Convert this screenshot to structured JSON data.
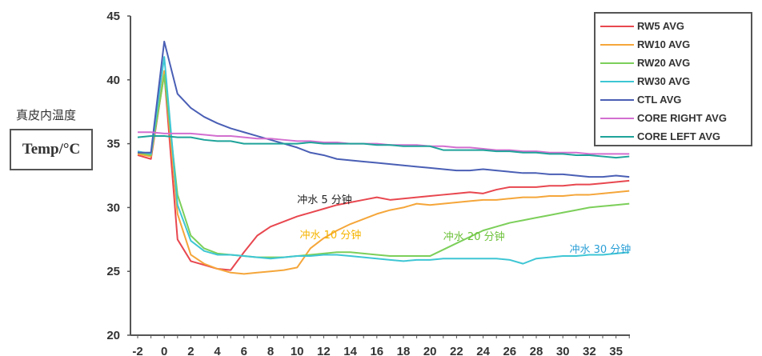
{
  "chart_data": {
    "type": "line",
    "title": "",
    "xlabel": "",
    "ylabel": "Temp/°C",
    "ylabel_cn": "真皮内温度",
    "ylim": [
      20,
      45
    ],
    "xlim": [
      -2,
      35
    ],
    "yticks": [
      20,
      25,
      30,
      35,
      40,
      45
    ],
    "xtick_labels": [
      "-2",
      "0",
      "2",
      "4",
      "6",
      "8",
      "10",
      "12",
      "14",
      "16",
      "18",
      "20",
      "22",
      "24",
      "26",
      "28",
      "30",
      "32",
      "35"
    ],
    "grid": false,
    "legend_position": "upper right",
    "x": [
      -2,
      -1,
      0,
      1,
      2,
      3,
      4,
      5,
      6,
      7,
      8,
      9,
      10,
      11,
      12,
      13,
      14,
      15,
      16,
      17,
      18,
      19,
      20,
      21,
      22,
      23,
      24,
      25,
      26,
      27,
      28,
      29,
      30,
      31,
      32,
      33,
      34,
      35
    ],
    "series": [
      {
        "name": "RW5 AVG",
        "color": "#e8474f",
        "values": [
          34.1,
          33.8,
          40.5,
          27.5,
          25.8,
          25.5,
          25.2,
          25.1,
          26.5,
          27.8,
          28.5,
          28.9,
          29.3,
          29.6,
          29.9,
          30.2,
          30.4,
          30.6,
          30.8,
          30.6,
          30.7,
          30.8,
          30.9,
          31.0,
          31.1,
          31.2,
          31.1,
          31.4,
          31.6,
          31.6,
          31.6,
          31.7,
          31.7,
          31.8,
          31.8,
          31.9,
          32.0,
          32.1
        ]
      },
      {
        "name": "RW10 AVG",
        "color": "#f5a63a",
        "values": [
          34.2,
          34.0,
          40.7,
          29.5,
          26.3,
          25.6,
          25.2,
          24.9,
          24.8,
          24.9,
          25.0,
          25.1,
          25.3,
          26.8,
          27.6,
          28.2,
          28.7,
          29.1,
          29.5,
          29.8,
          30.0,
          30.3,
          30.2,
          30.3,
          30.4,
          30.5,
          30.6,
          30.6,
          30.7,
          30.8,
          30.8,
          30.9,
          30.9,
          31.0,
          31.0,
          31.1,
          31.2,
          31.3
        ]
      },
      {
        "name": "RW20 AVG",
        "color": "#7ccf5a",
        "values": [
          34.3,
          34.1,
          40.4,
          31.0,
          27.8,
          26.8,
          26.4,
          26.3,
          26.2,
          26.1,
          26.1,
          26.1,
          26.2,
          26.3,
          26.4,
          26.5,
          26.5,
          26.4,
          26.3,
          26.2,
          26.2,
          26.2,
          26.2,
          26.7,
          27.2,
          27.7,
          28.2,
          28.5,
          28.8,
          29.0,
          29.2,
          29.4,
          29.6,
          29.8,
          30.0,
          30.1,
          30.2,
          30.3
        ]
      },
      {
        "name": "RW30 AVG",
        "color": "#3ec6d4",
        "values": [
          34.4,
          34.2,
          41.8,
          30.2,
          27.4,
          26.6,
          26.3,
          26.3,
          26.2,
          26.1,
          26.0,
          26.1,
          26.2,
          26.2,
          26.3,
          26.3,
          26.2,
          26.1,
          26.0,
          25.9,
          25.8,
          25.9,
          25.9,
          26.0,
          26.0,
          26.0,
          26.0,
          26.0,
          25.9,
          25.6,
          26.0,
          26.1,
          26.2,
          26.2,
          26.3,
          26.3,
          26.4,
          26.5
        ]
      },
      {
        "name": "CTL AVG",
        "color": "#4a5fb5",
        "values": [
          34.3,
          34.3,
          43.0,
          38.9,
          37.8,
          37.1,
          36.6,
          36.2,
          35.9,
          35.6,
          35.3,
          35.0,
          34.7,
          34.3,
          34.1,
          33.8,
          33.7,
          33.6,
          33.5,
          33.4,
          33.3,
          33.2,
          33.1,
          33.0,
          32.9,
          32.9,
          33.0,
          32.9,
          32.8,
          32.7,
          32.7,
          32.6,
          32.6,
          32.5,
          32.4,
          32.4,
          32.5,
          32.4
        ]
      },
      {
        "name": "CORE RIGHT AVG",
        "color": "#d36fd0",
        "values": [
          35.9,
          35.9,
          35.8,
          35.8,
          35.8,
          35.7,
          35.6,
          35.6,
          35.5,
          35.4,
          35.4,
          35.3,
          35.2,
          35.2,
          35.1,
          35.1,
          35.0,
          35.0,
          35.0,
          34.9,
          34.9,
          34.9,
          34.8,
          34.8,
          34.7,
          34.7,
          34.6,
          34.5,
          34.5,
          34.4,
          34.4,
          34.3,
          34.3,
          34.3,
          34.2,
          34.2,
          34.2,
          34.2
        ]
      },
      {
        "name": "CORE LEFT AVG",
        "color": "#1fa39a",
        "values": [
          35.5,
          35.6,
          35.6,
          35.5,
          35.5,
          35.3,
          35.2,
          35.2,
          35.0,
          35.0,
          35.0,
          35.0,
          35.0,
          35.1,
          35.0,
          35.0,
          35.0,
          35.0,
          34.9,
          34.9,
          34.8,
          34.8,
          34.8,
          34.5,
          34.5,
          34.5,
          34.5,
          34.4,
          34.4,
          34.3,
          34.3,
          34.2,
          34.2,
          34.1,
          34.1,
          34.0,
          33.9,
          34.0
        ]
      }
    ],
    "annotations": [
      {
        "text": "冲水 5 分钟",
        "x": 10.0,
        "y": 30.8,
        "color": "#222222"
      },
      {
        "text": "冲水 10 分钟",
        "x": 10.2,
        "y": 28.0,
        "color": "#f5b400"
      },
      {
        "text": "冲水 20 分钟",
        "x": 21.0,
        "y": 27.9,
        "color": "#6cc13a"
      },
      {
        "text": "冲水 30 分钟",
        "x": 30.5,
        "y": 26.9,
        "color": "#2a9fd6"
      }
    ]
  },
  "axis_label_cn": "真皮内温度",
  "axis_label_box": "Temp/°C"
}
